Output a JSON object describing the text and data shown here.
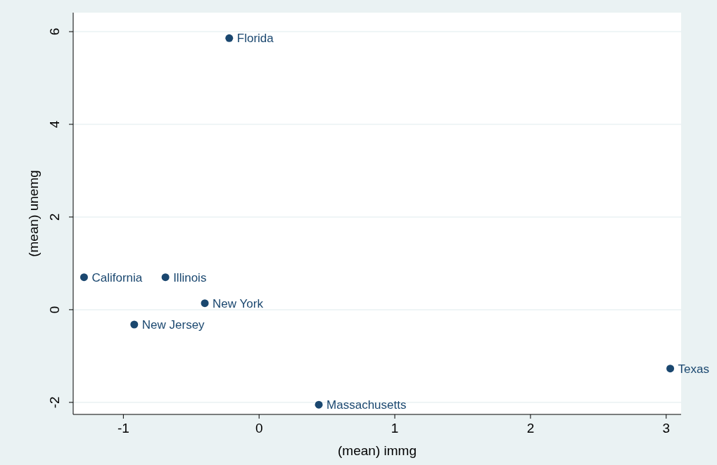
{
  "chart_data": {
    "type": "scatter",
    "xlabel": "(mean) immg",
    "ylabel": "(mean) unemg",
    "x": [
      -0.22,
      -1.29,
      -0.69,
      -0.4,
      -0.92,
      3.03,
      0.44
    ],
    "series": [
      {
        "color": "#1a476f",
        "values": [
          5.86,
          0.7,
          0.7,
          0.14,
          -0.32,
          -1.27,
          -2.05
        ]
      }
    ],
    "annotations": [
      {
        "text": "Florida",
        "x": -0.22,
        "y": 5.86
      },
      {
        "text": "California",
        "x": -1.29,
        "y": 0.7
      },
      {
        "text": "Illinois",
        "x": -0.69,
        "y": 0.7
      },
      {
        "text": "New York",
        "x": -0.4,
        "y": 0.14
      },
      {
        "text": "New Jersey",
        "x": -0.92,
        "y": -0.32
      },
      {
        "text": "Texas",
        "x": 3.03,
        "y": -1.27
      },
      {
        "text": "Massachusetts",
        "x": 0.44,
        "y": -2.05
      }
    ],
    "xlim": [
      -1.37,
      3.11
    ],
    "ylim": [
      -2.26,
      6.41
    ],
    "xticks": [
      -1,
      0,
      1,
      2,
      3
    ],
    "yticks": [
      -2,
      0,
      2,
      4,
      6
    ],
    "grid": "y",
    "marker": "circle"
  }
}
